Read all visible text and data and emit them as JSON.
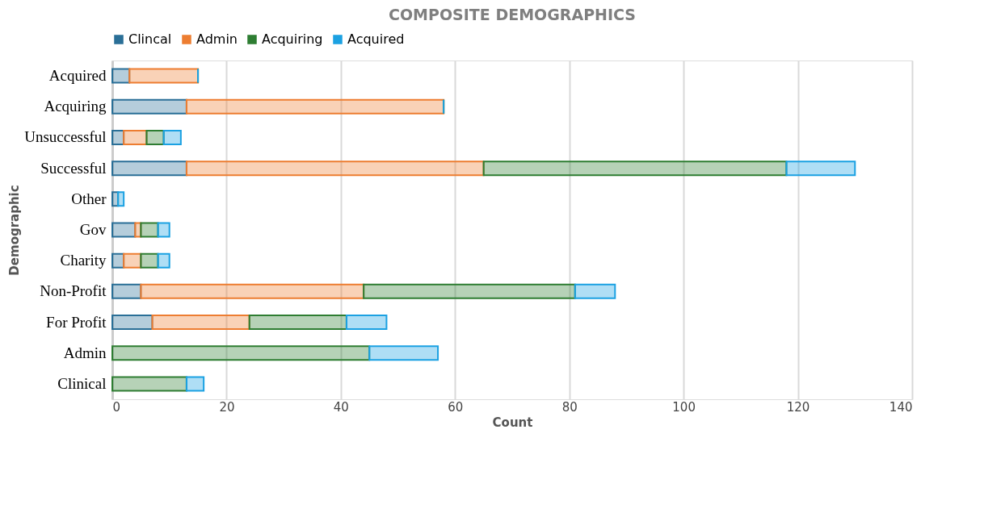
{
  "chart_data": {
    "type": "bar",
    "orientation": "horizontal",
    "stacked": true,
    "title": "COMPOSITE DEMOGRAPHICS",
    "xlabel": "Count",
    "ylabel": "Demographic",
    "categories": [
      "Acquired",
      "Acquiring",
      "Unsuccessful",
      "Successful",
      "Other",
      "Gov",
      "Charity",
      "Non-Profit",
      "For Profit",
      "Admin",
      "Clinical"
    ],
    "series": [
      {
        "name": "Clincal",
        "color": "#2a6f97",
        "values": [
          3,
          13,
          2,
          13,
          1,
          4,
          2,
          5,
          7,
          0,
          0
        ]
      },
      {
        "name": "Admin",
        "color": "#ed7d31",
        "values": [
          12,
          45,
          4,
          52,
          0,
          1,
          3,
          39,
          17,
          0,
          0
        ]
      },
      {
        "name": "Acquiring",
        "color": "#2e7d32",
        "values": [
          0,
          0,
          3,
          53,
          0,
          3,
          3,
          37,
          17,
          45,
          13
        ]
      },
      {
        "name": "Acquired",
        "color": "#1ba1e2",
        "values": [
          0,
          0,
          3,
          12,
          1,
          2,
          2,
          7,
          7,
          12,
          3
        ]
      }
    ],
    "xlim": [
      0,
      140
    ],
    "xticks": [
      0,
      20,
      40,
      60,
      80,
      100,
      120,
      140
    ],
    "grid": "x",
    "legend": "top"
  }
}
